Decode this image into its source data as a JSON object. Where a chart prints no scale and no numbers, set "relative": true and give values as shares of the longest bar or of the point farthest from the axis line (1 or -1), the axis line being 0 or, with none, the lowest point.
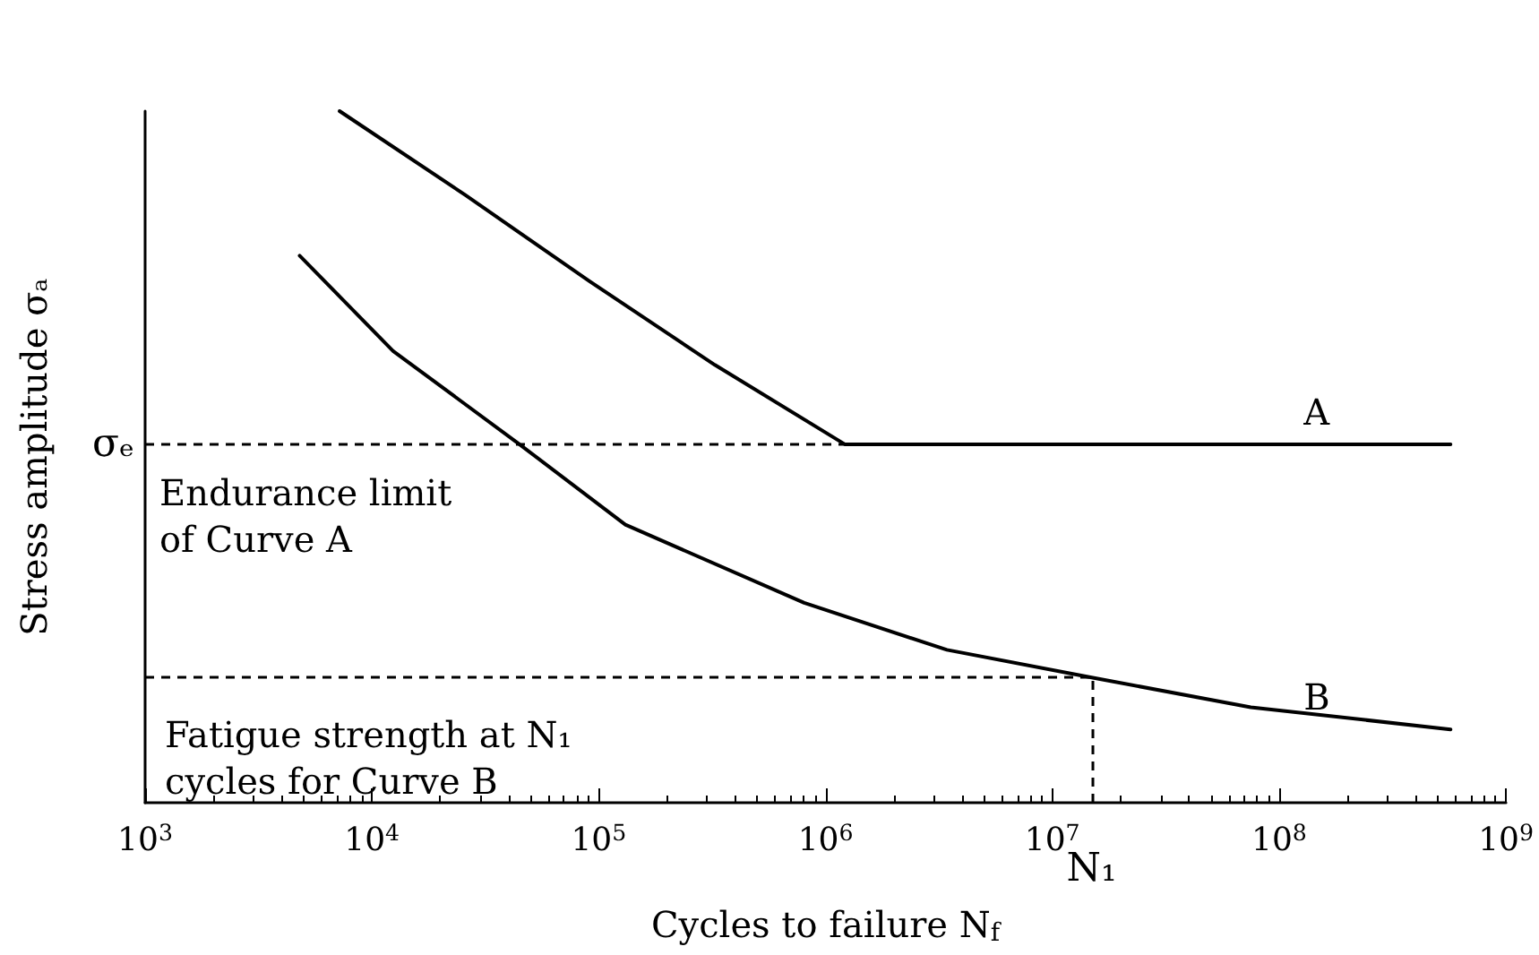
{
  "chart_data": {
    "type": "line",
    "relative": true,
    "log": "x",
    "xlabel": "Cycles to failure N$_{f}$",
    "ylabel": "Stress amplitude σₐ",
    "xlim": [
      1000,
      1000000000
    ],
    "xticks": [
      {
        "value": 1000,
        "label": "10$^{3}$"
      },
      {
        "value": 10000,
        "label": "10$^{4}$"
      },
      {
        "value": 100000,
        "label": "10$^{5}$"
      },
      {
        "value": 1000000,
        "label": "10$^{6}$"
      },
      {
        "value": 10000000,
        "label": "10$^{7}$"
      },
      {
        "value": 100000000,
        "label": "10$^{8}$"
      },
      {
        "value": 1000000000,
        "label": "10$^{9}$"
      }
    ],
    "series": [
      {
        "name": "A",
        "color": "#000000",
        "x": [
          7200,
          25700,
          91000,
          325000,
          1220000,
          570000000
        ],
        "values": [
          1,
          0.879,
          0.754,
          0.633,
          0.518,
          0.518
        ]
      },
      {
        "name": "B",
        "color": "#000000",
        "x": [
          4800,
          12400,
          44000,
          131000,
          805000,
          3430000,
          14900000,
          75000000,
          570000000
        ],
        "values": [
          0.791,
          0.653,
          0.52,
          0.402,
          0.289,
          0.221,
          0.181,
          0.138,
          0.106
        ]
      }
    ],
    "ref_lines": [
      {
        "axis": "y",
        "value": 0.518,
        "label": "σₑ",
        "color": "#000000",
        "line_style": "dashed"
      },
      {
        "axis": "y",
        "value": 0.181,
        "color": "#000000",
        "line_style": "dashed"
      },
      {
        "axis": "x",
        "value": 14900000,
        "label": "N₁",
        "color": "#000000",
        "line_style": "dashed"
      }
    ],
    "annotations": [
      "Endurance limit of Curve A",
      "Fatigue strength at N₁ cycles for Curve B"
    ],
    "line_style": "solid",
    "marker": "none",
    "legend": false,
    "grid": false
  }
}
